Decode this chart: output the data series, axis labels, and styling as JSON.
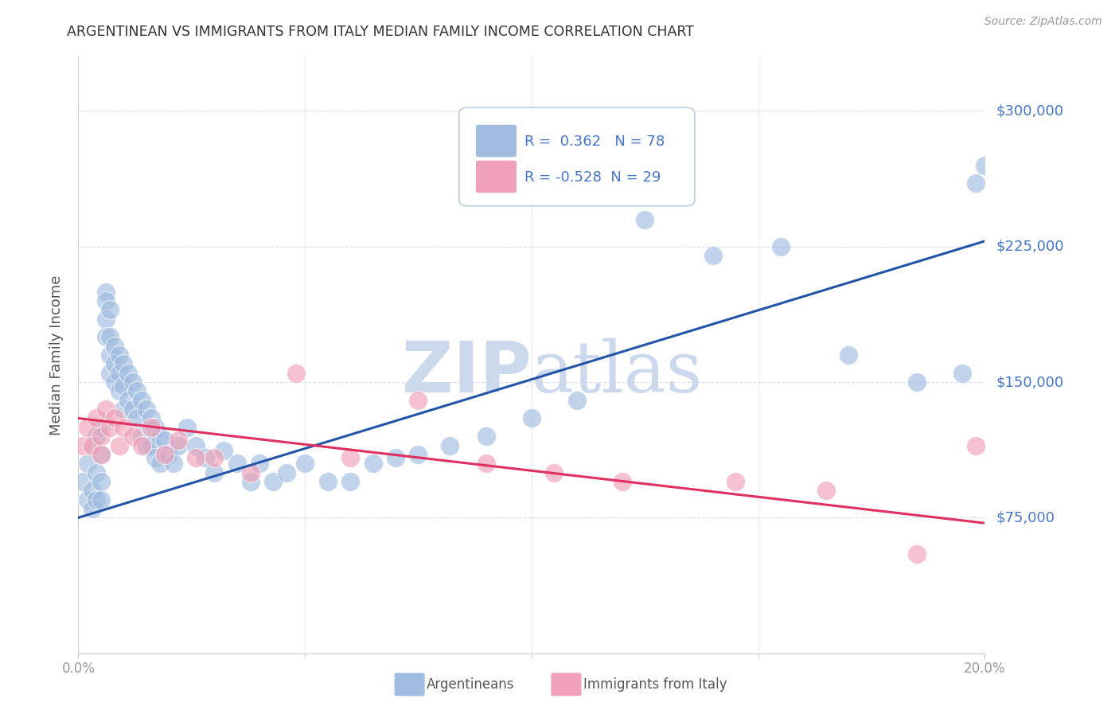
{
  "title": "ARGENTINEAN VS IMMIGRANTS FROM ITALY MEDIAN FAMILY INCOME CORRELATION CHART",
  "source": "Source: ZipAtlas.com",
  "ylabel": "Median Family Income",
  "yticks": [
    0,
    75000,
    150000,
    225000,
    300000
  ],
  "ytick_labels": [
    "",
    "$75,000",
    "$150,000",
    "$225,000",
    "$300,000"
  ],
  "xmin": 0.0,
  "xmax": 0.2,
  "ymin": 0,
  "ymax": 330000,
  "blue_R": 0.362,
  "blue_N": 78,
  "pink_R": -0.528,
  "pink_N": 29,
  "blue_color": "#a0bce0",
  "pink_color": "#f0a0b8",
  "blue_line_color": "#2255aa",
  "pink_line_color": "#e03060",
  "axis_label_color": "#4477cc",
  "watermark_color": "#ccd8ec",
  "background_color": "#ffffff",
  "grid_color": "#d8dff0",
  "blue_trend_x0": 0.0,
  "blue_trend_x1": 0.2,
  "blue_trend_y0": 75000,
  "blue_trend_y1": 228000,
  "pink_trend_x0": 0.0,
  "pink_trend_x1": 0.2,
  "pink_trend_y0": 130000,
  "pink_trend_y1": 72000,
  "blue_scatter_x": [
    0.001,
    0.002,
    0.002,
    0.003,
    0.003,
    0.003,
    0.004,
    0.004,
    0.004,
    0.005,
    0.005,
    0.005,
    0.005,
    0.006,
    0.006,
    0.006,
    0.006,
    0.007,
    0.007,
    0.007,
    0.007,
    0.008,
    0.008,
    0.008,
    0.009,
    0.009,
    0.009,
    0.01,
    0.01,
    0.01,
    0.011,
    0.011,
    0.012,
    0.012,
    0.013,
    0.013,
    0.014,
    0.014,
    0.015,
    0.015,
    0.016,
    0.016,
    0.017,
    0.017,
    0.018,
    0.018,
    0.019,
    0.02,
    0.021,
    0.022,
    0.024,
    0.026,
    0.028,
    0.03,
    0.032,
    0.035,
    0.038,
    0.04,
    0.043,
    0.046,
    0.05,
    0.055,
    0.06,
    0.065,
    0.07,
    0.075,
    0.082,
    0.09,
    0.1,
    0.11,
    0.125,
    0.14,
    0.155,
    0.17,
    0.185,
    0.195,
    0.198,
    0.2
  ],
  "blue_scatter_y": [
    95000,
    105000,
    85000,
    115000,
    90000,
    80000,
    120000,
    100000,
    85000,
    125000,
    110000,
    95000,
    85000,
    200000,
    195000,
    185000,
    175000,
    190000,
    175000,
    165000,
    155000,
    170000,
    160000,
    150000,
    165000,
    155000,
    145000,
    160000,
    148000,
    135000,
    155000,
    140000,
    150000,
    135000,
    145000,
    130000,
    140000,
    120000,
    135000,
    115000,
    130000,
    115000,
    125000,
    108000,
    120000,
    105000,
    118000,
    110000,
    105000,
    115000,
    125000,
    115000,
    108000,
    100000,
    112000,
    105000,
    95000,
    105000,
    95000,
    100000,
    105000,
    95000,
    95000,
    105000,
    108000,
    110000,
    115000,
    120000,
    130000,
    140000,
    240000,
    220000,
    225000,
    165000,
    150000,
    155000,
    260000,
    270000
  ],
  "pink_scatter_x": [
    0.001,
    0.002,
    0.003,
    0.004,
    0.005,
    0.005,
    0.006,
    0.007,
    0.008,
    0.009,
    0.01,
    0.012,
    0.014,
    0.016,
    0.019,
    0.022,
    0.026,
    0.03,
    0.038,
    0.048,
    0.06,
    0.075,
    0.09,
    0.105,
    0.12,
    0.145,
    0.165,
    0.185,
    0.198
  ],
  "pink_scatter_y": [
    115000,
    125000,
    115000,
    130000,
    120000,
    110000,
    135000,
    125000,
    130000,
    115000,
    125000,
    120000,
    115000,
    125000,
    110000,
    118000,
    108000,
    108000,
    100000,
    155000,
    108000,
    140000,
    105000,
    100000,
    95000,
    95000,
    90000,
    55000,
    115000
  ]
}
